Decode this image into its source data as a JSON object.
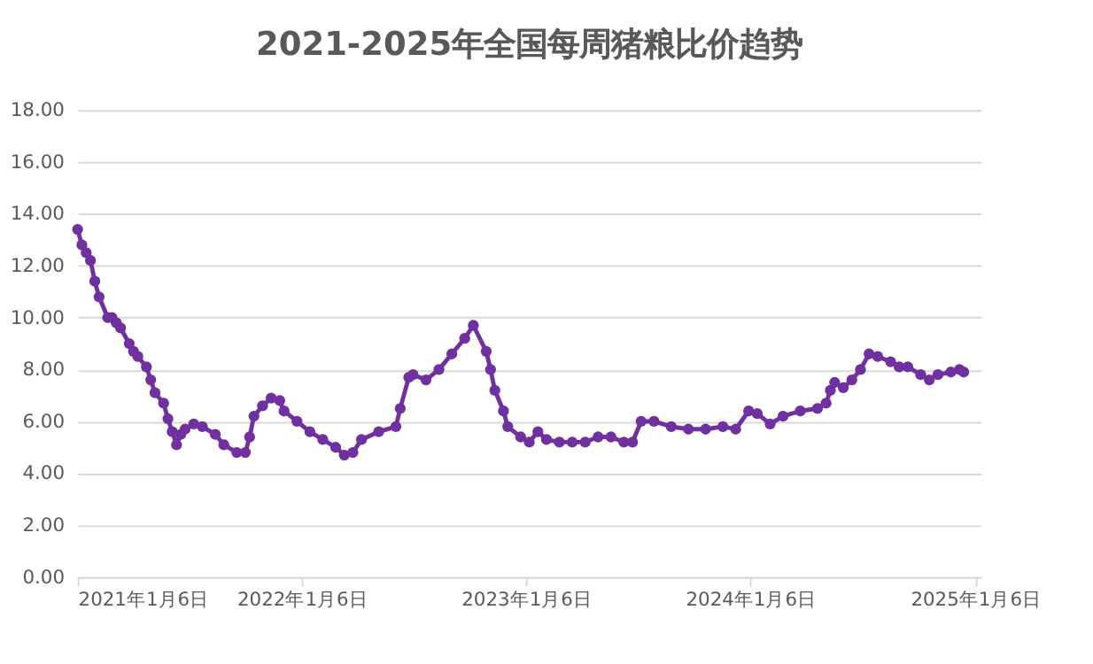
{
  "chart_data": {
    "type": "line",
    "title": "2021-2025年全国每周猪粮比价趋势",
    "x": [
      "2021-01-06",
      "2021-01-13",
      "2021-01-20",
      "2021-01-27",
      "2021-02-03",
      "2021-02-10",
      "2021-02-24",
      "2021-03-03",
      "2021-03-10",
      "2021-03-17",
      "2021-03-31",
      "2021-04-07",
      "2021-04-14",
      "2021-04-28",
      "2021-05-05",
      "2021-05-12",
      "2021-05-26",
      "2021-06-02",
      "2021-06-09",
      "2021-06-16",
      "2021-06-23",
      "2021-06-30",
      "2021-07-14",
      "2021-07-28",
      "2021-08-18",
      "2021-09-01",
      "2021-09-22",
      "2021-10-06",
      "2021-10-13",
      "2021-10-20",
      "2021-11-03",
      "2021-11-17",
      "2021-12-01",
      "2021-12-08",
      "2021-12-29",
      "2022-01-19",
      "2022-02-09",
      "2022-03-02",
      "2022-03-16",
      "2022-03-30",
      "2022-04-13",
      "2022-05-11",
      "2022-06-08",
      "2022-06-15",
      "2022-06-29",
      "2022-07-06",
      "2022-07-27",
      "2022-08-17",
      "2022-09-07",
      "2022-09-28",
      "2022-10-12",
      "2022-11-02",
      "2022-11-09",
      "2022-11-16",
      "2022-11-30",
      "2022-12-07",
      "2022-12-28",
      "2023-01-11",
      "2023-01-25",
      "2023-02-08",
      "2023-03-01",
      "2023-03-22",
      "2023-04-12",
      "2023-05-03",
      "2023-05-24",
      "2023-06-14",
      "2023-06-28",
      "2023-07-12",
      "2023-08-02",
      "2023-08-30",
      "2023-09-27",
      "2023-10-25",
      "2023-11-22",
      "2023-12-13",
      "2024-01-03",
      "2024-01-17",
      "2024-02-07",
      "2024-02-28",
      "2024-03-27",
      "2024-04-24",
      "2024-05-08",
      "2024-05-15",
      "2024-05-22",
      "2024-06-05",
      "2024-06-19",
      "2024-07-03",
      "2024-07-17",
      "2024-07-31",
      "2024-08-21",
      "2024-09-04",
      "2024-09-18",
      "2024-10-09",
      "2024-10-23",
      "2024-11-06",
      "2024-11-27",
      "2024-12-11",
      "2024-12-18"
    ],
    "series": [
      {
        "color": "#7030a0",
        "values": [
          13.4,
          12.8,
          12.5,
          12.2,
          11.4,
          10.8,
          10.0,
          10.0,
          9.8,
          9.6,
          9.0,
          8.7,
          8.5,
          8.1,
          7.6,
          7.1,
          6.7,
          6.1,
          5.6,
          5.1,
          5.5,
          5.7,
          5.9,
          5.8,
          5.5,
          5.1,
          4.8,
          4.8,
          5.4,
          6.2,
          6.6,
          6.9,
          6.8,
          6.4,
          6.0,
          5.6,
          5.3,
          5.0,
          4.7,
          4.8,
          5.3,
          5.6,
          5.8,
          6.5,
          7.7,
          7.8,
          7.6,
          8.0,
          8.6,
          9.2,
          9.7,
          8.7,
          8.0,
          7.2,
          6.4,
          5.8,
          5.4,
          5.2,
          5.6,
          5.3,
          5.2,
          5.2,
          5.2,
          5.4,
          5.4,
          5.2,
          5.2,
          6.0,
          6.0,
          5.8,
          5.7,
          5.7,
          5.8,
          5.7,
          6.4,
          6.3,
          5.9,
          6.2,
          6.4,
          6.5,
          6.7,
          7.2,
          7.5,
          7.3,
          7.6,
          8.0,
          8.6,
          8.5,
          8.3,
          8.1,
          8.1,
          7.8,
          7.6,
          7.8,
          7.9,
          8.0,
          7.9
        ]
      }
    ],
    "xlim": [
      "2021-01-06",
      "2025-01-15"
    ],
    "xticks": [
      {
        "value": "2021-01-06",
        "label": "2021年1月6日"
      },
      {
        "value": "2022-01-06",
        "label": "2022年1月6日"
      },
      {
        "value": "2023-01-06",
        "label": "2023年1月6日"
      },
      {
        "value": "2024-01-06",
        "label": "2024年1月6日"
      },
      {
        "value": "2025-01-06",
        "label": "2025年1月6日"
      }
    ],
    "ylim": [
      0,
      18
    ],
    "yticks": [
      {
        "value": 0,
        "label": "0.00"
      },
      {
        "value": 2,
        "label": "2.00"
      },
      {
        "value": 4,
        "label": "4.00"
      },
      {
        "value": 6,
        "label": "6.00"
      },
      {
        "value": 8,
        "label": "8.00"
      },
      {
        "value": 10,
        "label": "10.00"
      },
      {
        "value": 12,
        "label": "12.00"
      },
      {
        "value": 14,
        "label": "14.00"
      },
      {
        "value": 16,
        "label": "16.00"
      },
      {
        "value": 18,
        "label": "18.00"
      }
    ],
    "grid": "y",
    "marker": "circle",
    "line_style": "solid",
    "legend": false
  }
}
